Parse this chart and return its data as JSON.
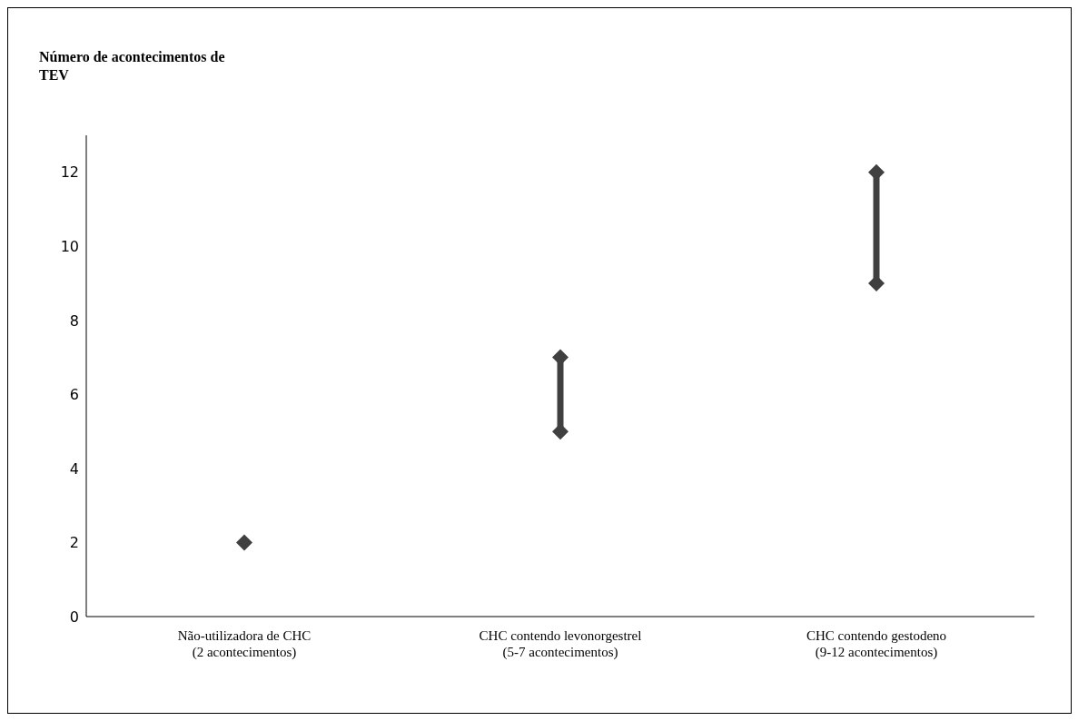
{
  "chart_data": {
    "type": "line",
    "ylabel": "Número de acontecimentos de\nTEV",
    "categories": [
      "Não-utilizadora de CHC\n(2 acontecimentos)",
      "CHC contendo levonorgestrel\n(5-7 acontecimentos)",
      "CHC contendo gestodeno\n(9-12 acontecimentos)"
    ],
    "series": [
      {
        "color": "#404040",
        "x": [
          "Não-utilizadora de CHC\n(2 acontecimentos)"
        ],
        "values": [
          2
        ]
      },
      {
        "color": "#404040",
        "x": [
          "CHC contendo levonorgestrel\n(5-7 acontecimentos)",
          "CHC contendo levonorgestrel\n(5-7 acontecimentos)"
        ],
        "values": [
          5,
          7
        ]
      },
      {
        "color": "#404040",
        "x": [
          "CHC contendo gestodeno\n(9-12 acontecimentos)",
          "CHC contendo gestodeno\n(9-12 acontecimentos)"
        ],
        "values": [
          9,
          12
        ]
      }
    ],
    "marker": "diamond",
    "line_style": "solid",
    "ylim": [
      0,
      13
    ],
    "yticks": [
      0,
      2,
      4,
      6,
      8,
      10,
      12
    ],
    "grid": false
  }
}
